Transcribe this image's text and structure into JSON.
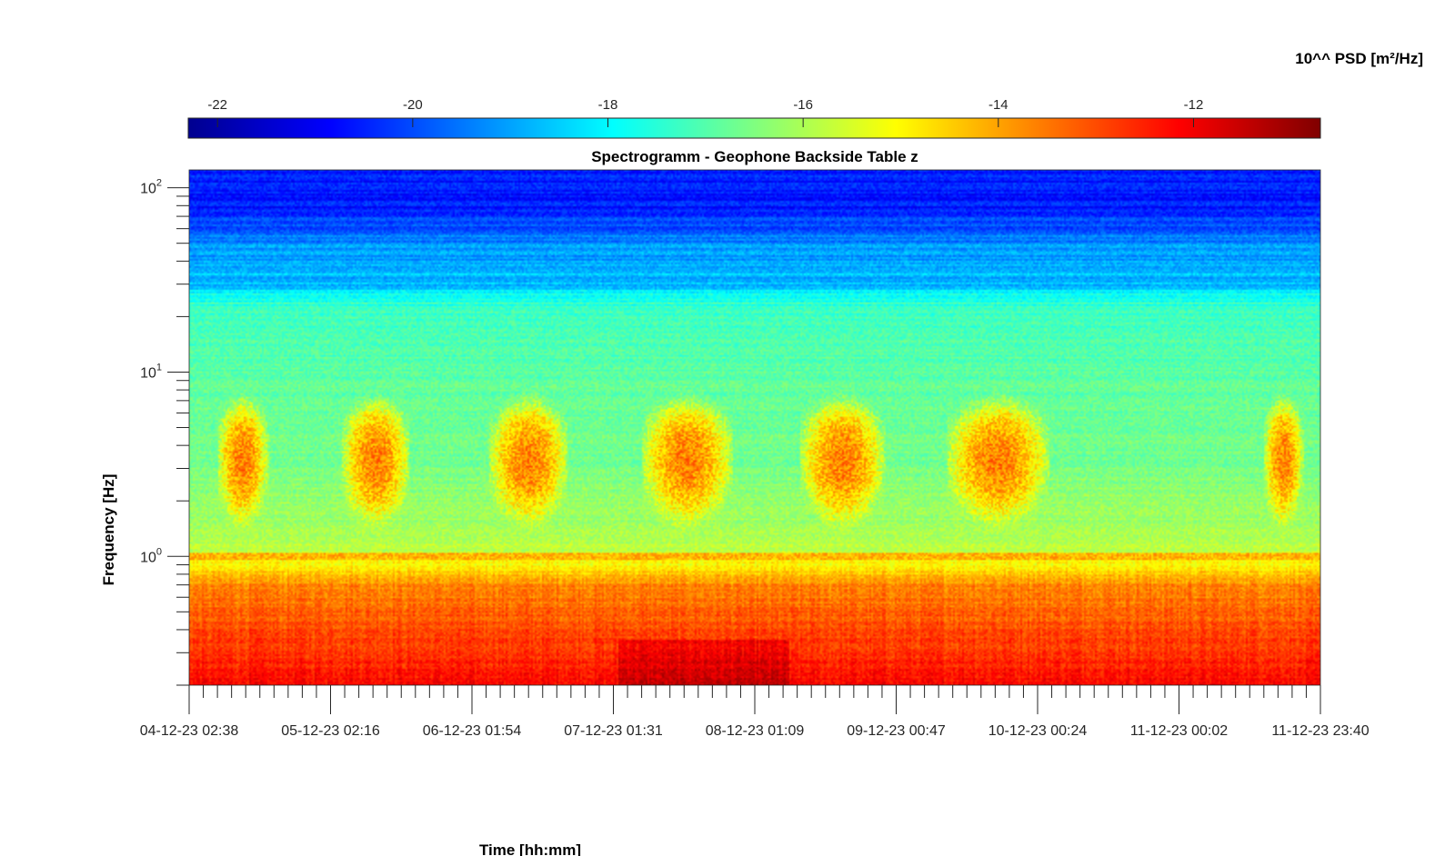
{
  "chart_data": {
    "type": "heatmap",
    "title": "Spectrogramm - Geophone Backside Table z",
    "xlabel": "Time [hh:mm]",
    "ylabel": "Frequency [Hz]",
    "colorbar_label": "10^^ PSD [m²/Hz]",
    "colormap": "jet",
    "colorbar_orientation": "horizontal, above plot",
    "clim": [
      -22.3,
      -10.7
    ],
    "colorbar_ticks": [
      -22,
      -20,
      -18,
      -16,
      -14,
      -12
    ],
    "y_scale": "log",
    "ylim": [
      0.2,
      125
    ],
    "y_major_ticks": [
      {
        "value": 100,
        "base": "10",
        "exp": "2"
      },
      {
        "value": 10,
        "base": "10",
        "exp": "1"
      },
      {
        "value": 1,
        "base": "10",
        "exp": "0"
      }
    ],
    "x_tick_labels": [
      "04-12-23 02:38",
      "05-12-23 02:16",
      "06-12-23 01:54",
      "07-12-23 01:31",
      "08-12-23 01:09",
      "09-12-23 00:47",
      "10-12-23 00:24",
      "11-12-23 00:02",
      "11-12-23 23:40"
    ],
    "x_minor_ticks_per_interval": 10,
    "grid": false,
    "features": [
      {
        "description": "broadband low-frequency energy",
        "freq_range_hz": [
          0.2,
          0.7
        ],
        "log10_psd_approx": -12.5
      },
      {
        "description": "persistent line near 1 Hz",
        "freq_hz": 1.0,
        "log10_psd_approx": -13.5
      },
      {
        "description": "daytime activity bursts",
        "freq_range_hz": [
          0.8,
          8
        ],
        "peak_freq_hz": 3.3,
        "log10_psd_approx": -13.2
      },
      {
        "description": "quiet band",
        "freq_range_hz": [
          10,
          25
        ],
        "log10_psd_approx": -17.0
      },
      {
        "description": "high-frequency floor",
        "freq_range_hz": [
          60,
          125
        ],
        "log10_psd_approx": -20.5
      }
    ],
    "activity_bursts_x_fraction": [
      [
        0.025,
        0.07
      ],
      [
        0.135,
        0.195
      ],
      [
        0.265,
        0.335
      ],
      [
        0.4,
        0.48
      ],
      [
        0.54,
        0.615
      ],
      [
        0.67,
        0.76
      ],
      [
        0.95,
        0.985
      ]
    ]
  }
}
